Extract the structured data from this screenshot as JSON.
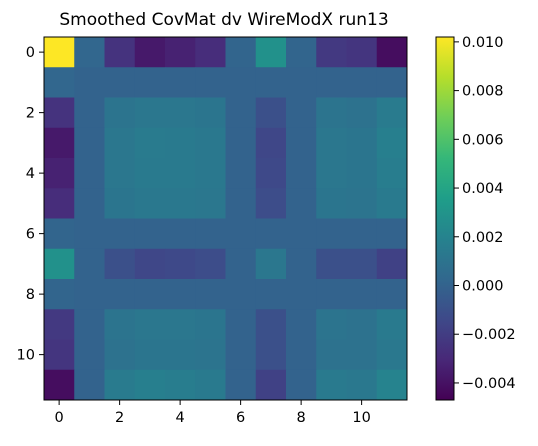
{
  "chart_data": {
    "type": "heatmap",
    "title": "Smoothed CovMat dv WireModX run13",
    "xlabel": "",
    "ylabel": "",
    "rows": 12,
    "cols": 12,
    "x_ticks": [
      "0",
      "2",
      "4",
      "6",
      "8",
      "10"
    ],
    "y_ticks": [
      "0",
      "2",
      "4",
      "6",
      "8",
      "10"
    ],
    "colormap": "viridis",
    "colorbar": {
      "vmin": -0.0047,
      "vmax": 0.0102,
      "ticks": [
        "0.010",
        "0.008",
        "0.006",
        "0.004",
        "0.002",
        "0.000",
        "−0.002",
        "−0.004"
      ]
    },
    "values": [
      [
        0.0102,
        0.0002,
        -0.0025,
        -0.0037,
        -0.0033,
        -0.0028,
        0.0001,
        0.0028,
        0.0001,
        -0.0022,
        -0.0024,
        -0.0042
      ],
      [
        0.0002,
        0.0,
        0.0,
        0.0,
        0.0,
        0.0,
        0.0,
        0.0,
        0.0,
        0.0,
        0.0,
        0.0
      ],
      [
        -0.0025,
        0.0,
        0.001,
        0.0012,
        0.0012,
        0.0011,
        0.0,
        -0.001,
        0.0,
        0.001,
        0.0009,
        0.0015
      ],
      [
        -0.0037,
        0.0,
        0.0012,
        0.0015,
        0.0014,
        0.0013,
        0.0,
        -0.0015,
        0.0,
        0.0012,
        0.0011,
        0.0017
      ],
      [
        -0.0033,
        0.0,
        0.0012,
        0.0014,
        0.0014,
        0.0013,
        0.0,
        -0.0014,
        0.0,
        0.0012,
        0.0011,
        0.0016
      ],
      [
        -0.0028,
        0.0,
        0.0011,
        0.0013,
        0.0013,
        0.0012,
        0.0,
        -0.0012,
        0.0,
        0.0011,
        0.001,
        0.0014
      ],
      [
        0.0001,
        0.0,
        0.0,
        0.0,
        0.0,
        0.0,
        0.0,
        0.0,
        0.0,
        0.0,
        0.0,
        0.0
      ],
      [
        0.0028,
        0.0,
        -0.001,
        -0.0015,
        -0.0014,
        -0.0012,
        0.0,
        0.0012,
        0.0,
        -0.001,
        -0.001,
        -0.0018
      ],
      [
        0.0001,
        0.0,
        0.0,
        0.0,
        0.0,
        0.0,
        0.0,
        0.0,
        0.0,
        0.0,
        0.0,
        0.0
      ],
      [
        -0.0022,
        0.0,
        0.001,
        0.0012,
        0.0012,
        0.0011,
        0.0,
        -0.001,
        0.0,
        0.001,
        0.0009,
        0.0014
      ],
      [
        -0.0024,
        0.0,
        0.0009,
        0.0011,
        0.0011,
        0.001,
        0.0,
        -0.001,
        0.0,
        0.0009,
        0.0009,
        0.0013
      ],
      [
        -0.0042,
        0.0,
        0.0015,
        0.0017,
        0.0016,
        0.0014,
        0.0,
        -0.0018,
        0.0,
        0.0014,
        0.0013,
        0.002
      ]
    ]
  }
}
